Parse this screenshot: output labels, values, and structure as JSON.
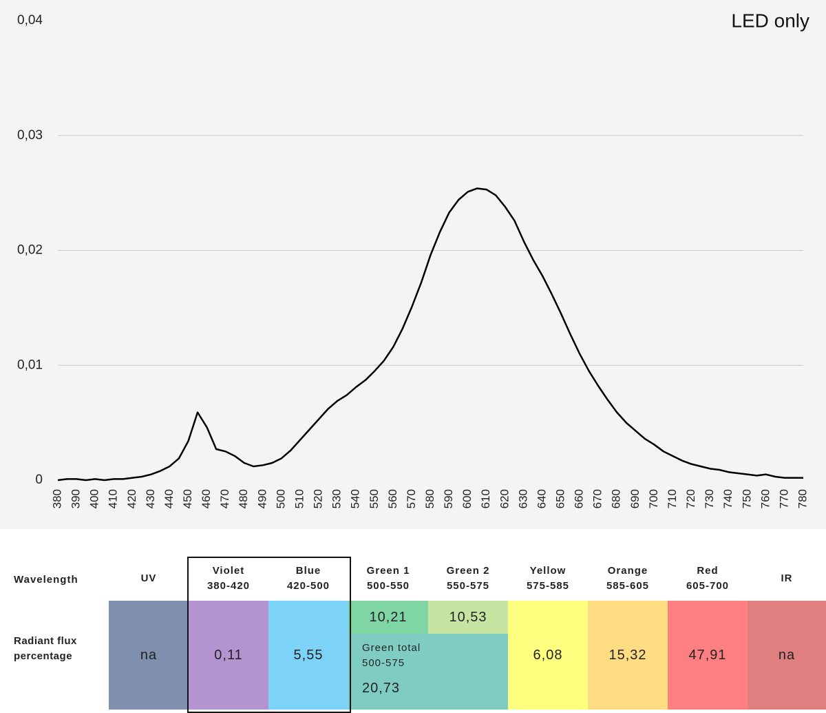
{
  "chart_data": {
    "type": "line",
    "title": "LED only",
    "x": [
      380,
      385,
      390,
      395,
      400,
      405,
      410,
      415,
      420,
      425,
      430,
      435,
      440,
      445,
      450,
      455,
      460,
      465,
      470,
      475,
      480,
      485,
      490,
      495,
      500,
      505,
      510,
      515,
      520,
      525,
      530,
      535,
      540,
      545,
      550,
      555,
      560,
      565,
      570,
      575,
      580,
      585,
      590,
      595,
      600,
      605,
      610,
      615,
      620,
      625,
      630,
      635,
      640,
      645,
      650,
      655,
      660,
      665,
      670,
      675,
      680,
      685,
      690,
      695,
      700,
      705,
      710,
      715,
      720,
      725,
      730,
      735,
      740,
      745,
      750,
      755,
      760,
      765,
      770,
      775,
      780
    ],
    "values": [
      0,
      0.0001,
      0.0001,
      0,
      0.0001,
      0,
      0.0001,
      0.0001,
      0.0002,
      0.0003,
      0.0005,
      0.0008,
      0.0012,
      0.0019,
      0.0034,
      0.0059,
      0.0046,
      0.0027,
      0.0025,
      0.0021,
      0.0015,
      0.0012,
      0.0013,
      0.0015,
      0.0019,
      0.0026,
      0.0035,
      0.0044,
      0.0053,
      0.0062,
      0.0069,
      0.0074,
      0.0081,
      0.0087,
      0.0095,
      0.0104,
      0.0116,
      0.0132,
      0.0151,
      0.0172,
      0.0196,
      0.0216,
      0.0233,
      0.0244,
      0.0251,
      0.0254,
      0.0253,
      0.0248,
      0.0238,
      0.0226,
      0.0208,
      0.0192,
      0.0178,
      0.0162,
      0.0145,
      0.0127,
      0.011,
      0.0095,
      0.0082,
      0.007,
      0.0059,
      0.005,
      0.0043,
      0.0036,
      0.0031,
      0.0025,
      0.0021,
      0.0017,
      0.0014,
      0.0012,
      0.001,
      0.0009,
      0.0007,
      0.0006,
      0.0005,
      0.0004,
      0.0005,
      0.0003,
      0.0002,
      0.0002,
      0.0002
    ],
    "color": "#000000",
    "xlim": [
      380,
      780
    ],
    "xticks": [
      380,
      390,
      400,
      410,
      420,
      430,
      440,
      450,
      460,
      470,
      480,
      490,
      500,
      510,
      520,
      530,
      540,
      550,
      560,
      570,
      580,
      590,
      600,
      610,
      620,
      630,
      640,
      650,
      660,
      670,
      680,
      690,
      700,
      710,
      720,
      730,
      740,
      750,
      760,
      770,
      780
    ],
    "ylim": [
      0,
      0.04
    ],
    "yticks": [
      0,
      {
        "value": 0.01,
        "label": "0,01"
      },
      {
        "value": 0.02,
        "label": "0,02"
      },
      {
        "value": 0.03,
        "label": "0,03"
      },
      {
        "value": 0.04,
        "label": "0,04"
      }
    ],
    "grid": true
  },
  "table": {
    "row_headers": [
      "Wavelength",
      "Radiant flux percentage"
    ],
    "columns": [
      {
        "name": "UV",
        "value": "na",
        "color": "#7f8fae"
      },
      {
        "name": "Violet",
        "range": "380-420",
        "value": "0,11",
        "color": "#b394d0"
      },
      {
        "name": "Blue",
        "range": "420-500",
        "value": "5,55",
        "color": "#7dd3f7"
      },
      {
        "name": "Green 1",
        "range": "500-550",
        "value": "10,21",
        "color": "#7fd6a4"
      },
      {
        "name": "Green 2",
        "range": "550-575",
        "value": "10,53",
        "color": "#c6e5a3"
      },
      {
        "name": "Yellow",
        "range": "575-585",
        "value": "6,08",
        "color": "#fefe7f"
      },
      {
        "name": "Orange",
        "range": "585-605",
        "value": "15,32",
        "color": "#fedc82"
      },
      {
        "name": "Red",
        "range": "605-700",
        "value": "47,91",
        "color": "#fe7f7f"
      },
      {
        "name": "IR",
        "value": "na",
        "color": "#df7f7f"
      }
    ],
    "green_total": {
      "label": "Green total",
      "range": "500-575",
      "value": "20,73",
      "color": "#7fcdc2"
    }
  }
}
